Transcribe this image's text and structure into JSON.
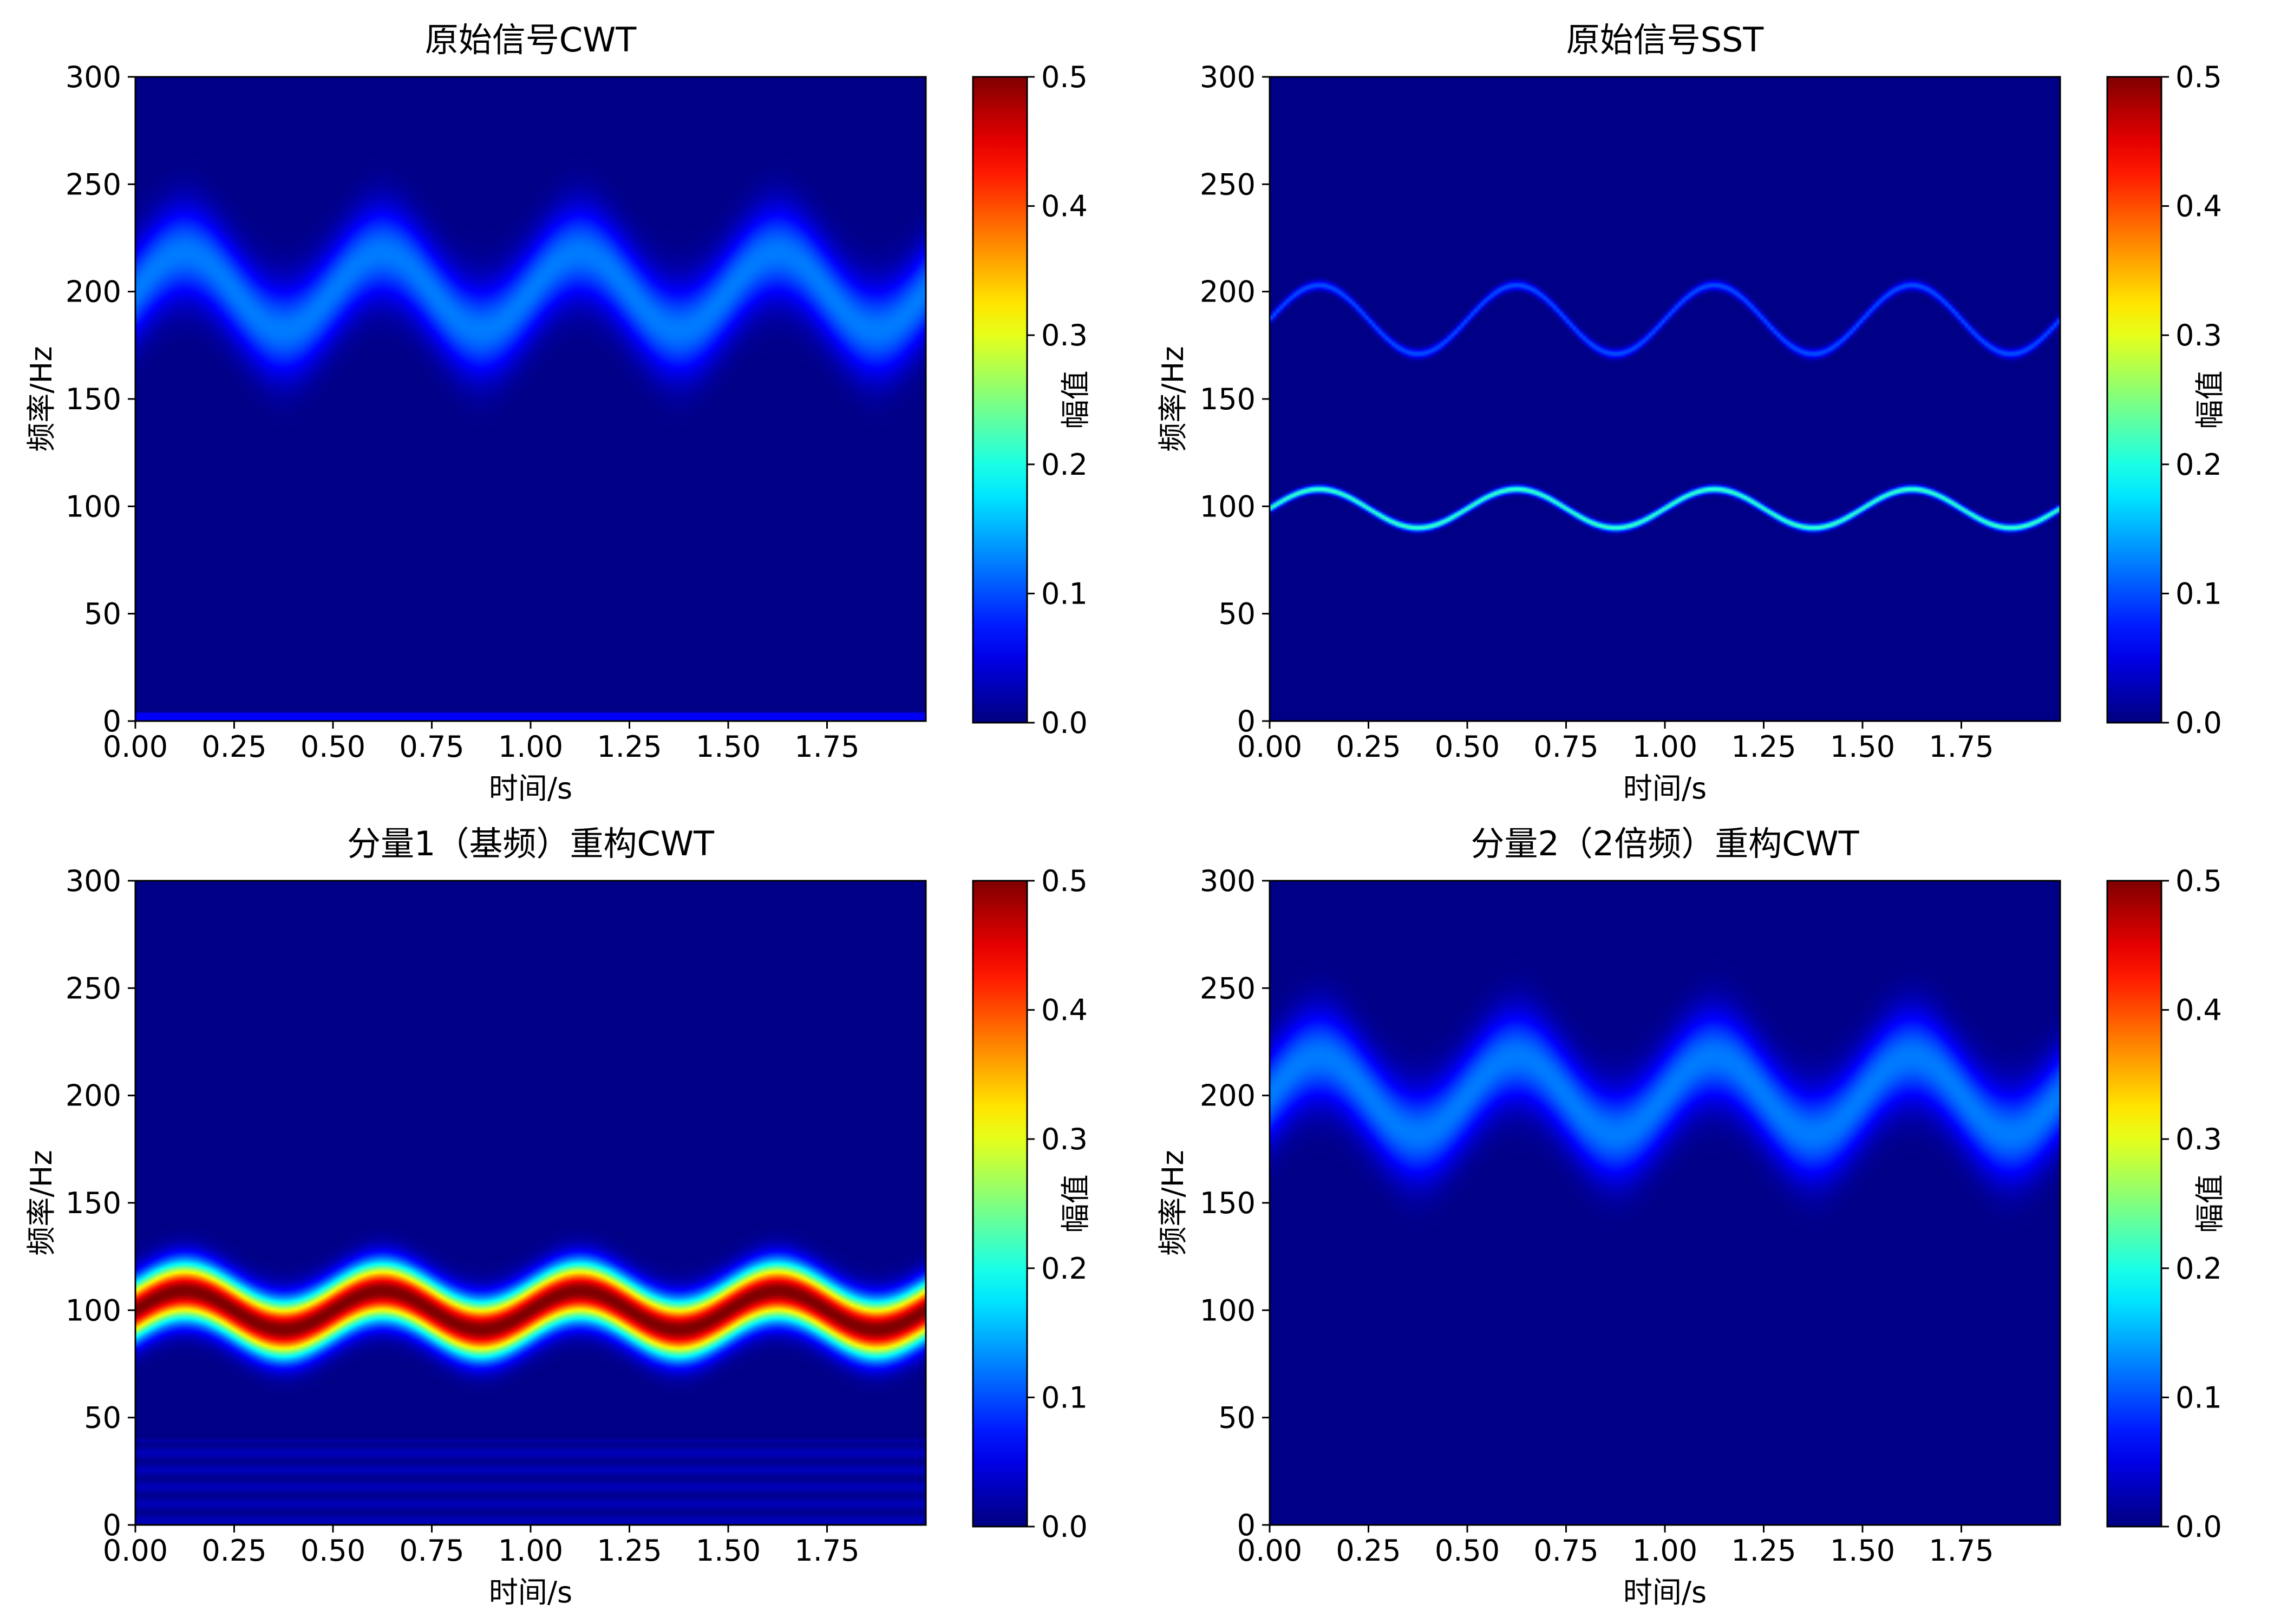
{
  "chart_data": [
    {
      "type": "heatmap",
      "title": "原始信号CWT",
      "xlabel": "时间/s",
      "ylabel": "频率/Hz",
      "colorbar_label": "幅值",
      "xlim": [
        0,
        2
      ],
      "ylim": [
        0,
        300
      ],
      "xticks": [
        "0.00",
        "0.25",
        "0.50",
        "0.75",
        "1.00",
        "1.25",
        "1.50",
        "1.75"
      ],
      "yticks": [
        "0",
        "50",
        "100",
        "150",
        "200",
        "250",
        "300"
      ],
      "cbar_range": [
        0,
        0.5
      ],
      "cbar_ticks": [
        "0.0",
        "0.1",
        "0.2",
        "0.3",
        "0.4",
        "0.5"
      ],
      "colormap": "jet",
      "ridges": [
        {
          "center_hz": 200,
          "amplitude_hz": 18,
          "period_s": 0.5,
          "peak_time_s": 0.125,
          "peak_value": 0.12,
          "halfwidth_hz": 15
        }
      ]
    },
    {
      "type": "heatmap",
      "title": "原始信号SST",
      "xlabel": "时间/s",
      "ylabel": "频率/Hz",
      "colorbar_label": "幅值",
      "xlim": [
        0,
        2
      ],
      "ylim": [
        0,
        300
      ],
      "xticks": [
        "0.00",
        "0.25",
        "0.50",
        "0.75",
        "1.00",
        "1.25",
        "1.50",
        "1.75"
      ],
      "yticks": [
        "0",
        "50",
        "100",
        "150",
        "200",
        "250",
        "300"
      ],
      "cbar_range": [
        0,
        0.5
      ],
      "cbar_ticks": [
        "0.0",
        "0.1",
        "0.2",
        "0.3",
        "0.4",
        "0.5"
      ],
      "colormap": "jet",
      "ridges": [
        {
          "center_hz": 187,
          "amplitude_hz": 16,
          "period_s": 0.5,
          "peak_time_s": 0.125,
          "peak_value": 0.1,
          "halfwidth_hz": 1.5
        },
        {
          "center_hz": 99,
          "amplitude_hz": 9,
          "period_s": 0.5,
          "peak_time_s": 0.125,
          "peak_value": 0.22,
          "halfwidth_hz": 1.2
        }
      ]
    },
    {
      "type": "heatmap",
      "title": "分量1（基频）重构CWT",
      "xlabel": "时间/s",
      "ylabel": "频率/Hz",
      "colorbar_label": "幅值",
      "xlim": [
        0,
        2
      ],
      "ylim": [
        0,
        300
      ],
      "xticks": [
        "0.00",
        "0.25",
        "0.50",
        "0.75",
        "1.00",
        "1.25",
        "1.50",
        "1.75"
      ],
      "yticks": [
        "0",
        "50",
        "100",
        "150",
        "200",
        "250",
        "300"
      ],
      "cbar_range": [
        0,
        0.5
      ],
      "cbar_ticks": [
        "0.0",
        "0.1",
        "0.2",
        "0.3",
        "0.4",
        "0.5"
      ],
      "colormap": "jet",
      "ridges": [
        {
          "center_hz": 100,
          "amplitude_hz": 9,
          "period_s": 0.5,
          "peak_time_s": 0.125,
          "peak_value": 0.5,
          "halfwidth_hz": 9
        }
      ]
    },
    {
      "type": "heatmap",
      "title": "分量2（2倍频）重构CWT",
      "xlabel": "时间/s",
      "ylabel": "频率/Hz",
      "colorbar_label": "幅值",
      "xlim": [
        0,
        2
      ],
      "ylim": [
        0,
        300
      ],
      "xticks": [
        "0.00",
        "0.25",
        "0.50",
        "0.75",
        "1.00",
        "1.25",
        "1.50",
        "1.75"
      ],
      "yticks": [
        "0",
        "50",
        "100",
        "150",
        "200",
        "250",
        "300"
      ],
      "cbar_range": [
        0,
        0.5
      ],
      "cbar_ticks": [
        "0.0",
        "0.1",
        "0.2",
        "0.3",
        "0.4",
        "0.5"
      ],
      "colormap": "jet",
      "ridges": [
        {
          "center_hz": 200,
          "amplitude_hz": 18,
          "period_s": 0.5,
          "peak_time_s": 0.125,
          "peak_value": 0.12,
          "halfwidth_hz": 15
        }
      ]
    }
  ]
}
